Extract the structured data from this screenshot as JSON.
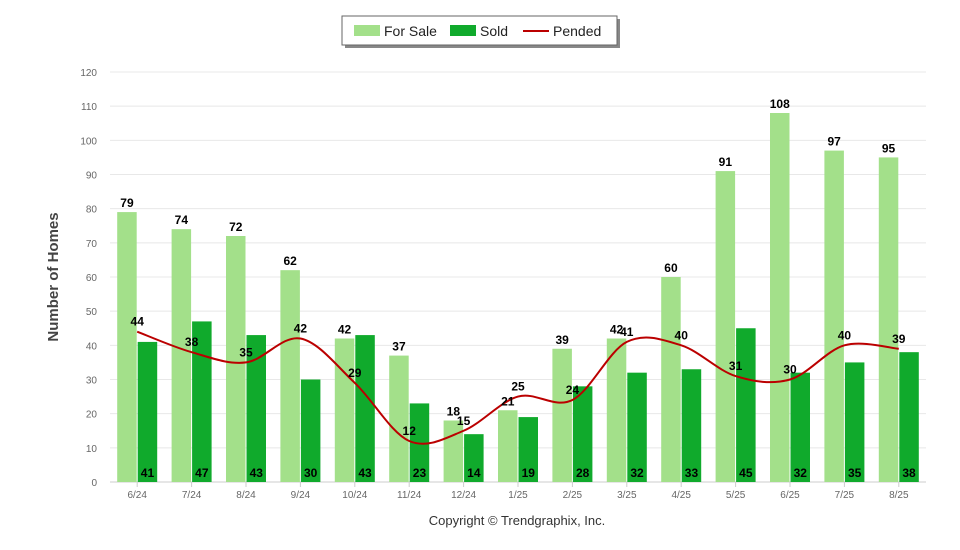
{
  "chart_data": {
    "type": "bar",
    "categories": [
      "6/24",
      "7/24",
      "8/24",
      "9/24",
      "10/24",
      "11/24",
      "12/24",
      "1/25",
      "2/25",
      "3/25",
      "4/25",
      "5/25",
      "6/25",
      "7/25",
      "8/25"
    ],
    "series": [
      {
        "name": "For Sale",
        "type": "bar",
        "color": "#a3e08a",
        "values": [
          79,
          74,
          72,
          62,
          42,
          37,
          18,
          21,
          39,
          42,
          60,
          91,
          108,
          97,
          95
        ]
      },
      {
        "name": "Sold",
        "type": "bar",
        "color": "#10aa2c",
        "values": [
          41,
          47,
          43,
          30,
          43,
          23,
          14,
          19,
          28,
          32,
          33,
          45,
          32,
          35,
          38
        ]
      },
      {
        "name": "Pended",
        "type": "line",
        "color": "#bb0000",
        "values": [
          44,
          38,
          35,
          42,
          29,
          12,
          15,
          25,
          24,
          41,
          40,
          31,
          30,
          40,
          39
        ]
      }
    ],
    "ylabel": "Number of Homes",
    "xlabel": "",
    "ylim": [
      0,
      120
    ],
    "yticks": [
      0,
      10,
      20,
      30,
      40,
      50,
      60,
      70,
      80,
      90,
      100,
      110,
      120
    ],
    "grid": true,
    "legend": "top-center"
  },
  "footer": {
    "copyright": "Copyright © Trendgraphix, Inc."
  }
}
